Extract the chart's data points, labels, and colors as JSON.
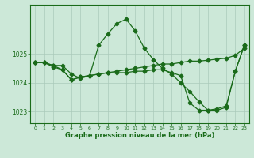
{
  "hours": [
    0,
    1,
    2,
    3,
    4,
    5,
    6,
    7,
    8,
    9,
    10,
    11,
    12,
    13,
    14,
    15,
    16,
    17,
    18,
    19,
    20,
    21,
    22,
    23
  ],
  "line1": [
    1024.7,
    1024.7,
    1024.6,
    1024.6,
    1024.3,
    1024.15,
    1024.25,
    1025.3,
    1025.7,
    1026.05,
    1026.2,
    1025.8,
    1025.2,
    1024.8,
    1024.5,
    1024.3,
    1024.0,
    1023.7,
    1023.35,
    1023.05,
    1023.05,
    1023.15,
    1024.4,
    1025.3
  ],
  "line2": [
    1024.7,
    1024.7,
    1024.55,
    1024.45,
    1024.1,
    1024.2,
    1024.25,
    1024.3,
    1024.35,
    1024.4,
    1024.45,
    1024.5,
    1024.55,
    1024.6,
    1024.65,
    1024.65,
    1024.7,
    1024.75,
    1024.75,
    1024.78,
    1024.82,
    1024.85,
    1024.95,
    1025.2
  ],
  "line3": [
    1024.7,
    1024.7,
    1024.6,
    1024.45,
    1024.1,
    1024.2,
    1024.25,
    1024.3,
    1024.35,
    1024.35,
    1024.35,
    1024.4,
    1024.4,
    1024.45,
    1024.45,
    1024.35,
    1024.25,
    1023.3,
    1023.05,
    1023.05,
    1023.1,
    1023.2,
    1024.4,
    1025.3
  ],
  "line_color": "#1a6b1a",
  "bg_color": "#cce8d8",
  "grid_color": "#aacaba",
  "ylim": [
    1022.6,
    1026.7
  ],
  "yticks": [
    1023,
    1024,
    1025
  ],
  "marker": "D",
  "markersize": 2.5,
  "linewidth": 0.9,
  "xlabel": "Graphe pression niveau de la mer (hPa)"
}
